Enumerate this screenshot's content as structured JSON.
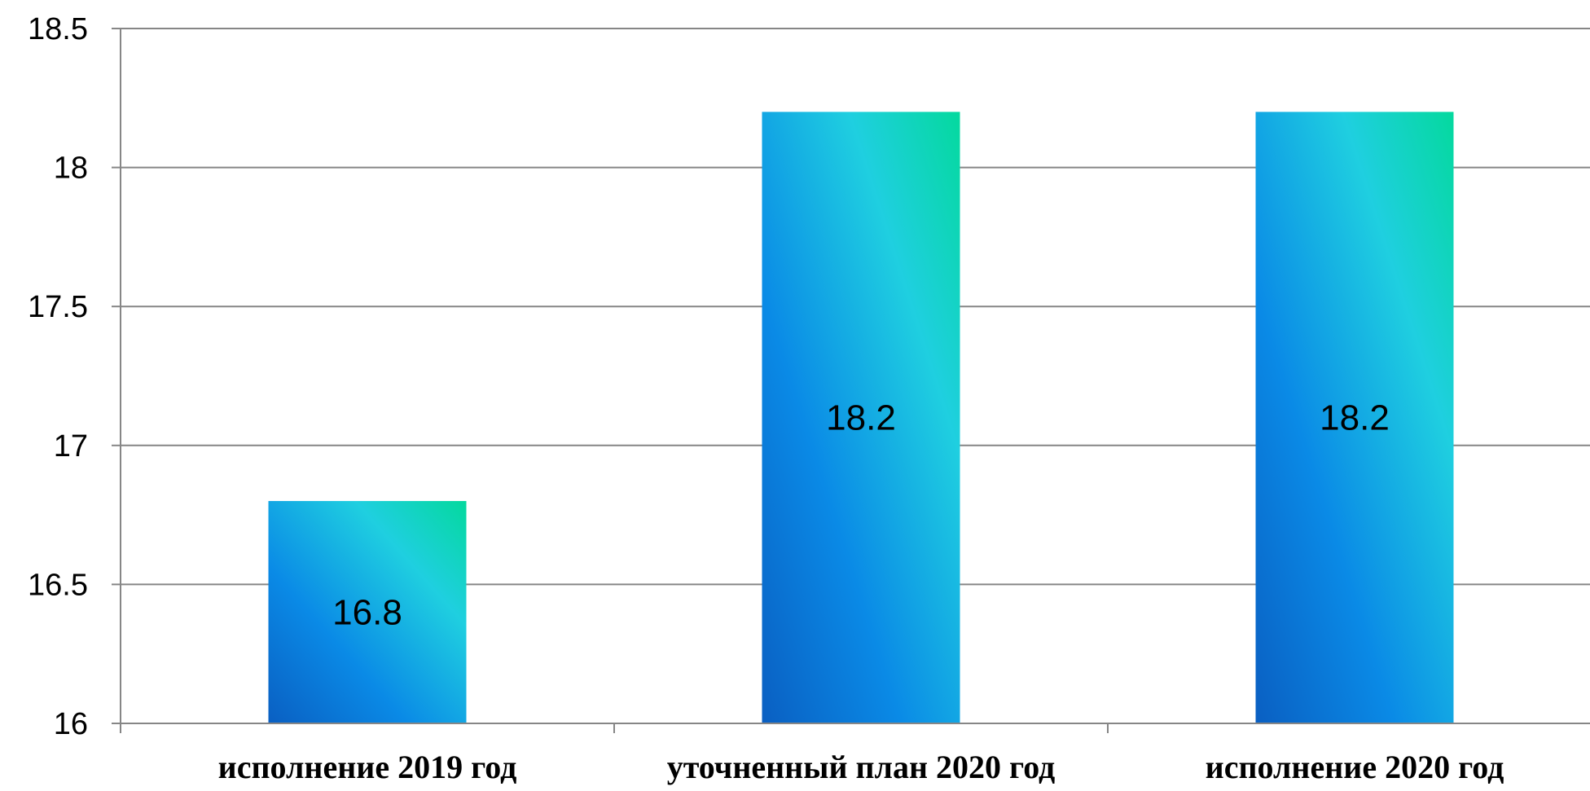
{
  "chart_data": {
    "type": "bar",
    "categories": [
      "исполнение 2019 год",
      "уточненный план 2020 год",
      "исполнение 2020 год"
    ],
    "values": [
      16.8,
      18.2,
      18.2
    ],
    "data_labels": [
      "16.8",
      "18.2",
      "18.2"
    ],
    "title": "",
    "xlabel": "",
    "ylabel": "",
    "ylim": [
      16,
      18.5
    ],
    "yticks": [
      16,
      16.5,
      17,
      17.5,
      18,
      18.5
    ],
    "ytick_labels": [
      "16",
      "16.5",
      "17",
      "17.5",
      "18",
      "18.5"
    ],
    "grid": true,
    "legend": "none",
    "colors": {
      "bar_gradient": [
        "#0a5fc2",
        "#0a8ae6",
        "#1fcfe0",
        "#04d99e"
      ],
      "grid": "#868686",
      "text": "#000000"
    }
  }
}
